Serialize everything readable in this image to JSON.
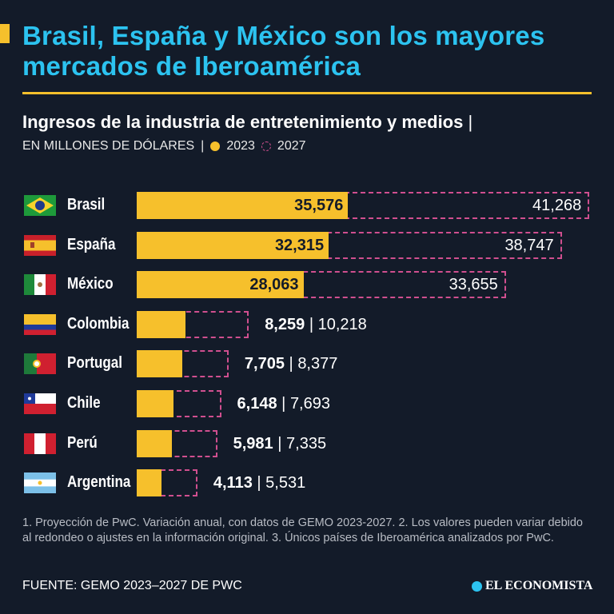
{
  "title": "Brasil, España y México son los mayores mercados de Iberoamérica",
  "chart_data": {
    "type": "bar",
    "title": "Ingresos de la industria de entretenimiento y medios",
    "units": "EN MILLONES DE DÓLARES",
    "legend": [
      {
        "label": "2023",
        "color": "#f6c02c",
        "style": "solid"
      },
      {
        "label": "2027",
        "color": "#d04f8f",
        "style": "dashed"
      }
    ],
    "categories": [
      "Brasil",
      "España",
      "México",
      "Colombia",
      "Portugal",
      "Chile",
      "Perú",
      "Argentina"
    ],
    "series": [
      {
        "name": "2023",
        "values": [
          35576,
          32315,
          28063,
          8259,
          7705,
          6148,
          5981,
          4113
        ],
        "labels": [
          "35,576",
          "32,315",
          "28,063",
          "8,259",
          "7,705",
          "6,148",
          "5,981",
          "4,113"
        ]
      },
      {
        "name": "2027",
        "values": [
          41268,
          38747,
          33655,
          10218,
          8377,
          7693,
          7335,
          5531
        ],
        "labels": [
          "41,268",
          "38,747",
          "33,655",
          "10,218",
          "8,377",
          "7,693",
          "7,335",
          "5,531"
        ]
      }
    ]
  },
  "notes": "1. Proyección de PwC. Variación anual, con datos de GEMO 2023-2027. 2. Los valores pueden variar debido al redondeo o ajustes en la información original. 3. Únicos países de Iberoamérica analizados por PwC.",
  "source": "FUENTE: GEMO 2023–2027 DE PWC",
  "logo": "EL ECONOMISTA",
  "separator": "|"
}
